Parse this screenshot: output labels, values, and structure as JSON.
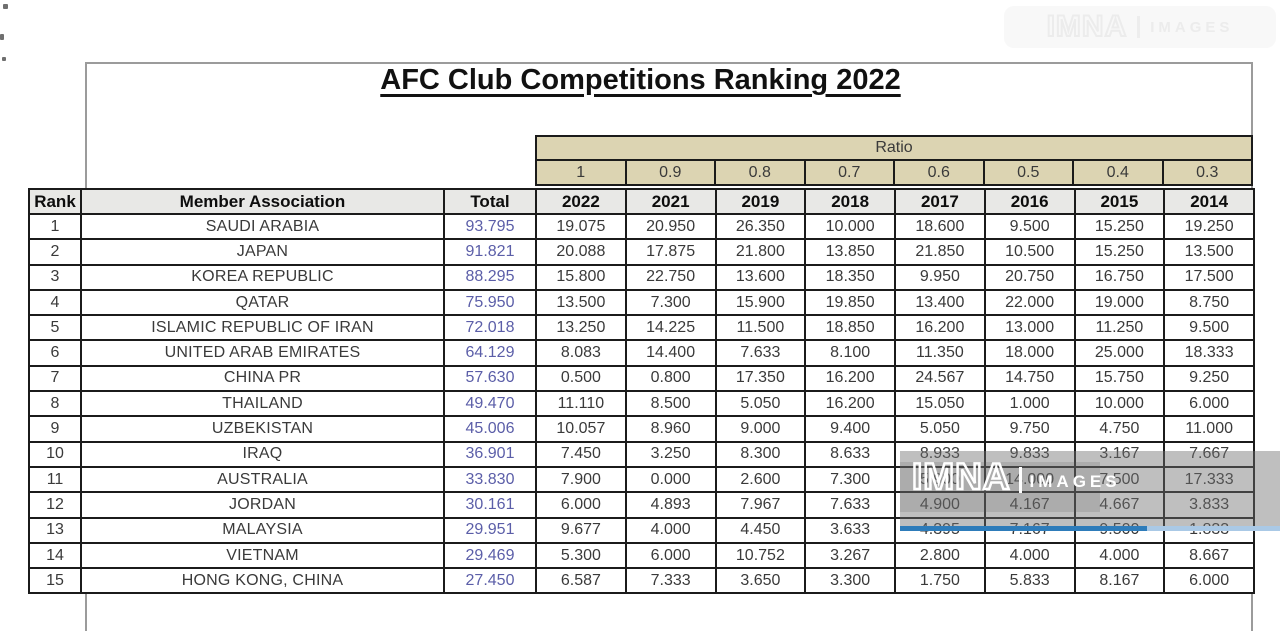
{
  "title": "AFC Club Competitions Ranking 2022",
  "watermark": {
    "brand": "IMNA",
    "label": "IMAGES"
  },
  "colors": {
    "total_text": "#5b5ea8",
    "ratio_band": "#dcd4b2",
    "header_band": "#e8e8e6",
    "watermark_blue": "#2e7cba"
  },
  "table": {
    "ratio_label": "Ratio",
    "ratios": [
      "1",
      "0.9",
      "0.8",
      "0.7",
      "0.6",
      "0.5",
      "0.4",
      "0.3"
    ],
    "headers": {
      "rank": "Rank",
      "member": "Member Association",
      "total": "Total"
    },
    "years": [
      "2022",
      "2021",
      "2019",
      "2018",
      "2017",
      "2016",
      "2015",
      "2014"
    ],
    "rows": [
      {
        "rank": "1",
        "member": "SAUDI ARABIA",
        "total": "93.795",
        "values": [
          "19.075",
          "20.950",
          "26.350",
          "10.000",
          "18.600",
          "9.500",
          "15.250",
          "19.250"
        ]
      },
      {
        "rank": "2",
        "member": "JAPAN",
        "total": "91.821",
        "values": [
          "20.088",
          "17.875",
          "21.800",
          "13.850",
          "21.850",
          "10.500",
          "15.250",
          "13.500"
        ]
      },
      {
        "rank": "3",
        "member": "KOREA REPUBLIC",
        "total": "88.295",
        "values": [
          "15.800",
          "22.750",
          "13.600",
          "18.350",
          "9.950",
          "20.750",
          "16.750",
          "17.500"
        ]
      },
      {
        "rank": "4",
        "member": "QATAR",
        "total": "75.950",
        "values": [
          "13.500",
          "7.300",
          "15.900",
          "19.850",
          "13.400",
          "22.000",
          "19.000",
          "8.750"
        ]
      },
      {
        "rank": "5",
        "member": "ISLAMIC REPUBLIC OF IRAN",
        "total": "72.018",
        "values": [
          "13.250",
          "14.225",
          "11.500",
          "18.850",
          "16.200",
          "13.000",
          "11.250",
          "9.500"
        ]
      },
      {
        "rank": "6",
        "member": "UNITED ARAB EMIRATES",
        "total": "64.129",
        "values": [
          "8.083",
          "14.400",
          "7.633",
          "8.100",
          "11.350",
          "18.000",
          "25.000",
          "18.333"
        ]
      },
      {
        "rank": "7",
        "member": "CHINA PR",
        "total": "57.630",
        "values": [
          "0.500",
          "0.800",
          "17.350",
          "16.200",
          "24.567",
          "14.750",
          "15.750",
          "9.250"
        ]
      },
      {
        "rank": "8",
        "member": "THAILAND",
        "total": "49.470",
        "values": [
          "11.110",
          "8.500",
          "5.050",
          "16.200",
          "15.050",
          "1.000",
          "10.000",
          "6.000"
        ]
      },
      {
        "rank": "9",
        "member": "UZBEKISTAN",
        "total": "45.006",
        "values": [
          "10.057",
          "8.960",
          "9.000",
          "9.400",
          "5.050",
          "9.750",
          "4.750",
          "11.000"
        ]
      },
      {
        "rank": "10",
        "member": "IRAQ",
        "total": "36.901",
        "values": [
          "7.450",
          "3.250",
          "8.300",
          "8.633",
          "8.933",
          "9.833",
          "3.167",
          "7.667"
        ]
      },
      {
        "rank": "11",
        "member": "AUSTRALIA",
        "total": "33.830",
        "values": [
          "7.900",
          "0.000",
          "2.600",
          "7.300",
          "5.900",
          "14.000",
          "7.500",
          "17.333"
        ]
      },
      {
        "rank": "12",
        "member": "JORDAN",
        "total": "30.161",
        "values": [
          "6.000",
          "4.893",
          "7.967",
          "7.633",
          "4.900",
          "4.167",
          "4.667",
          "3.833"
        ]
      },
      {
        "rank": "13",
        "member": "MALAYSIA",
        "total": "29.951",
        "values": [
          "9.677",
          "4.000",
          "4.450",
          "3.633",
          "4.395",
          "7.167",
          "9.500",
          "1.833"
        ]
      },
      {
        "rank": "14",
        "member": "VIETNAM",
        "total": "29.469",
        "values": [
          "5.300",
          "6.000",
          "10.752",
          "3.267",
          "2.800",
          "4.000",
          "4.000",
          "8.667"
        ]
      },
      {
        "rank": "15",
        "member": "HONG KONG, CHINA",
        "total": "27.450",
        "values": [
          "6.587",
          "7.333",
          "3.650",
          "3.300",
          "1.750",
          "5.833",
          "8.167",
          "6.000"
        ]
      }
    ]
  }
}
